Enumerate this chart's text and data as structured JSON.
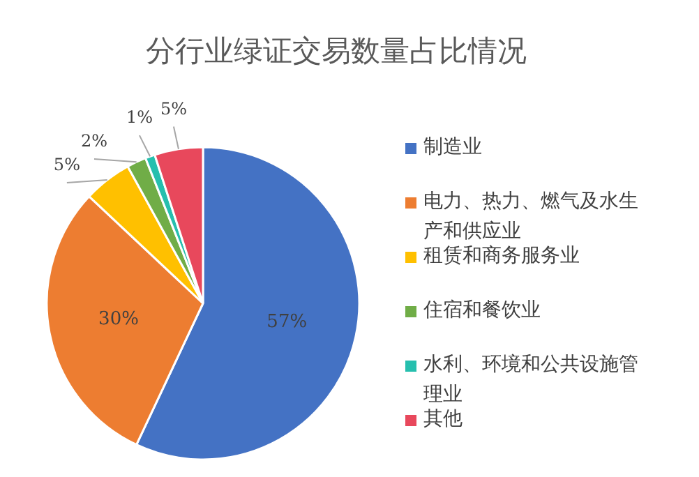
{
  "chart_data": {
    "type": "pie",
    "title": "分行业绿证交易数量占比情况",
    "categories": [
      "制造业",
      "电力、热力、燃气及水生产和供应业",
      "租赁和商务服务业",
      "住宿和餐饮业",
      "水利、环境和公共设施管理业",
      "其他"
    ],
    "values": [
      57,
      30,
      5,
      2,
      1,
      5
    ],
    "colors": [
      "#4472c4",
      "#ed7d31",
      "#ffc000",
      "#70ad47",
      "#26bfae",
      "#e8485c"
    ],
    "value_labels": [
      "57%",
      "30%",
      "5%",
      "2%",
      "1%",
      "5%"
    ],
    "legend": "right"
  }
}
